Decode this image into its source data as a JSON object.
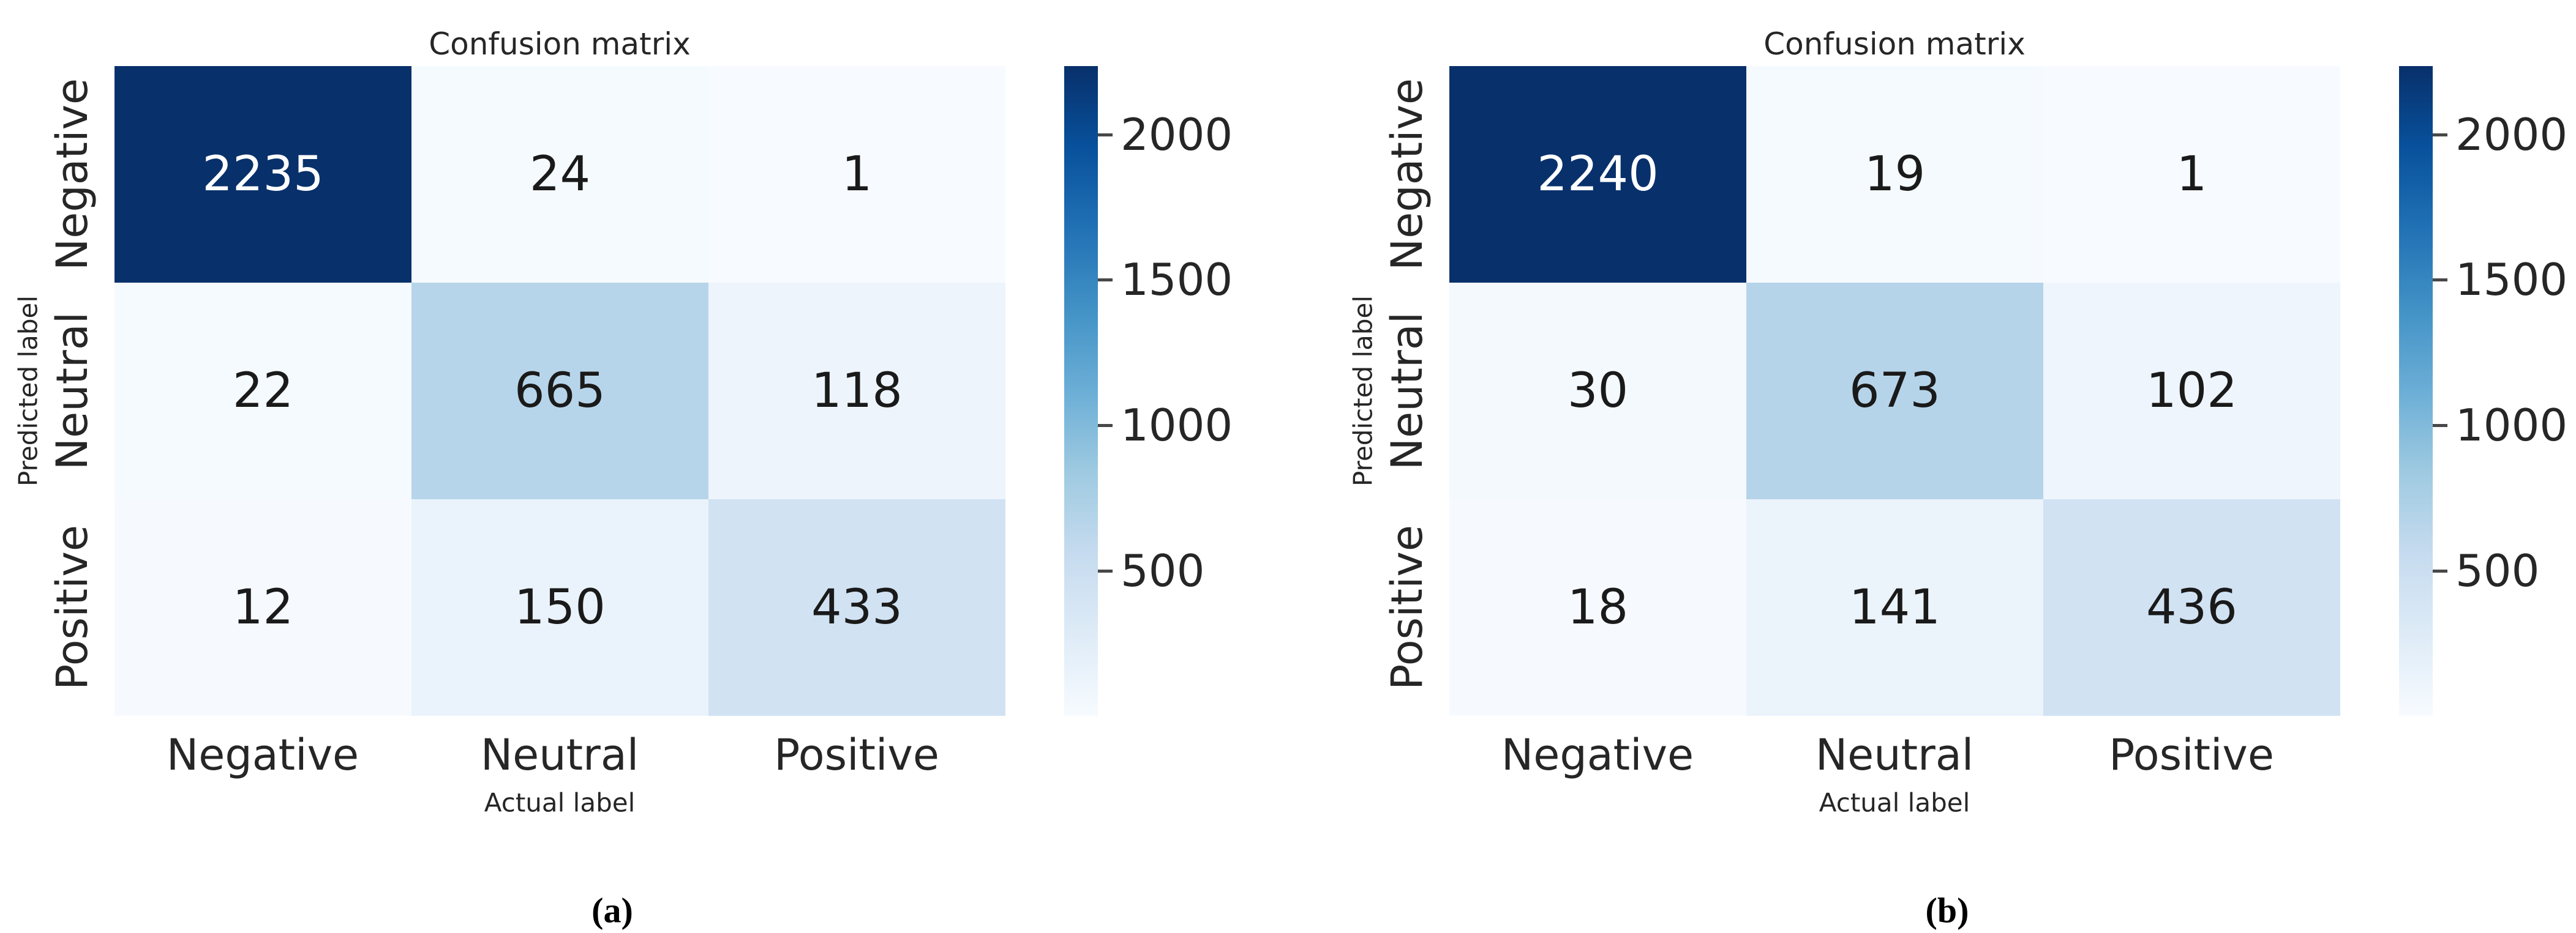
{
  "figure": {
    "panels": [
      {
        "caption": "(a)",
        "title": "Confusion matrix",
        "x_axis_label": "Actual label",
        "y_axis_label": "Predicted label",
        "x_categories": [
          "Negative",
          "Neutral",
          "Positive"
        ],
        "y_categories": [
          "Negative",
          "Neutral",
          "Positive"
        ],
        "cells": [
          {
            "value": "2235",
            "bg": "#08306b",
            "fg": "#ffffff"
          },
          {
            "value": "24",
            "bg": "#f5fafe",
            "fg": "#1a1a1a"
          },
          {
            "value": "1",
            "bg": "#f7fbff",
            "fg": "#1a1a1a"
          },
          {
            "value": "22",
            "bg": "#f5fafe",
            "fg": "#1a1a1a"
          },
          {
            "value": "665",
            "bg": "#b7d5ea",
            "fg": "#1a1a1a"
          },
          {
            "value": "118",
            "bg": "#edf4fc",
            "fg": "#1a1a1a"
          },
          {
            "value": "12",
            "bg": "#f6faff",
            "fg": "#1a1a1a"
          },
          {
            "value": "150",
            "bg": "#eaf3fb",
            "fg": "#1a1a1a"
          },
          {
            "value": "433",
            "bg": "#d1e2f3",
            "fg": "#1a1a1a"
          }
        ],
        "colorbar_tick_labels": [
          "2000",
          "1500",
          "1000",
          "500"
        ]
      },
      {
        "caption": "(b)",
        "title": "Confusion matrix",
        "x_axis_label": "Actual label",
        "y_axis_label": "Predicted label",
        "x_categories": [
          "Negative",
          "Neutral",
          "Positive"
        ],
        "y_categories": [
          "Negative",
          "Neutral",
          "Positive"
        ],
        "cells": [
          {
            "value": "2240",
            "bg": "#08306b",
            "fg": "#ffffff"
          },
          {
            "value": "19",
            "bg": "#f5faff",
            "fg": "#1a1a1a"
          },
          {
            "value": "1",
            "bg": "#f7fbff",
            "fg": "#1a1a1a"
          },
          {
            "value": "30",
            "bg": "#f4f9fe",
            "fg": "#1a1a1a"
          },
          {
            "value": "673",
            "bg": "#b6d4e9",
            "fg": "#1a1a1a"
          },
          {
            "value": "102",
            "bg": "#eef5fc",
            "fg": "#1a1a1a"
          },
          {
            "value": "18",
            "bg": "#f6faff",
            "fg": "#1a1a1a"
          },
          {
            "value": "141",
            "bg": "#ebf3fb",
            "fg": "#1a1a1a"
          },
          {
            "value": "436",
            "bg": "#d1e2f3",
            "fg": "#1a1a1a"
          }
        ],
        "colorbar_tick_labels": [
          "2000",
          "1500",
          "1000",
          "500"
        ]
      }
    ],
    "colors": {
      "colormap": "Blues",
      "colormap_max": "#08306b",
      "colormap_min": "#f7fbff",
      "dark_text": "#1a1a1a",
      "light_text": "#ffffff"
    }
  },
  "chart_data": [
    {
      "type": "heatmap",
      "title": "Confusion matrix",
      "xlabel": "Actual label",
      "ylabel": "Predicted label",
      "x_categories": [
        "Negative",
        "Neutral",
        "Positive"
      ],
      "y_categories": [
        "Negative",
        "Neutral",
        "Positive"
      ],
      "values": [
        [
          2235,
          24,
          1
        ],
        [
          22,
          665,
          118
        ],
        [
          12,
          150,
          433
        ]
      ],
      "colormap": "Blues",
      "vmin": 1,
      "vmax": 2235,
      "colorbar_ticks": [
        500,
        1000,
        1500,
        2000
      ],
      "legend_position": "right-colorbar",
      "grid": false,
      "panel_caption": "(a)"
    },
    {
      "type": "heatmap",
      "title": "Confusion matrix",
      "xlabel": "Actual label",
      "ylabel": "Predicted label",
      "x_categories": [
        "Negative",
        "Neutral",
        "Positive"
      ],
      "y_categories": [
        "Negative",
        "Neutral",
        "Positive"
      ],
      "values": [
        [
          2240,
          19,
          1
        ],
        [
          30,
          673,
          102
        ],
        [
          18,
          141,
          436
        ]
      ],
      "colormap": "Blues",
      "vmin": 1,
      "vmax": 2240,
      "colorbar_ticks": [
        500,
        1000,
        1500,
        2000
      ],
      "legend_position": "right-colorbar",
      "grid": false,
      "panel_caption": "(b)"
    }
  ]
}
